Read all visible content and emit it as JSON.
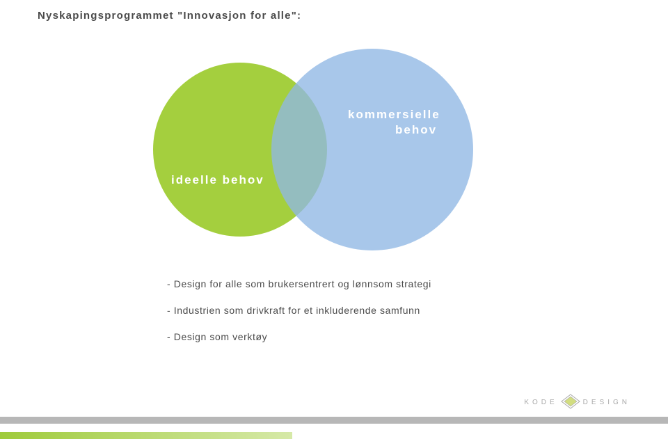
{
  "title": {
    "text": "Nyskapingsprogrammet \"Innovasjon for alle\":",
    "color": "#4a4a4a",
    "fontsize": 15
  },
  "venn": {
    "type": "venn2",
    "left_circle": {
      "fill": "#a4cf3e",
      "opacity": 1.0,
      "label": "ideelle behov",
      "label_color": "#ffffff",
      "label_fontsize": 17
    },
    "right_circle": {
      "fill": "#8fb7e4",
      "opacity": 0.78,
      "label_line1": "kommersielle",
      "label_line2": "behov",
      "label_color": "#ffffff",
      "label_fontsize": 17
    }
  },
  "bullets": {
    "color": "#4a4a4a",
    "fontsize": 14,
    "items": [
      "- Design for alle som brukersentrert og lønnsom strategi",
      "- Industrien som drivkraft for et inkluderende samfunn",
      "- Design som verktøy"
    ]
  },
  "footer": {
    "bar_color": "#b7b7b7",
    "gradient_from": "#9fcb3b",
    "gradient_to": "#d6e9a8",
    "gradient_width": 420
  },
  "logo": {
    "word_left": "KODE",
    "word_right": "DESIGN",
    "color": "#9a9a9a",
    "fontsize": 10,
    "mark_fill": "#cbd86a",
    "mark_stroke": "#9a9a9a"
  }
}
